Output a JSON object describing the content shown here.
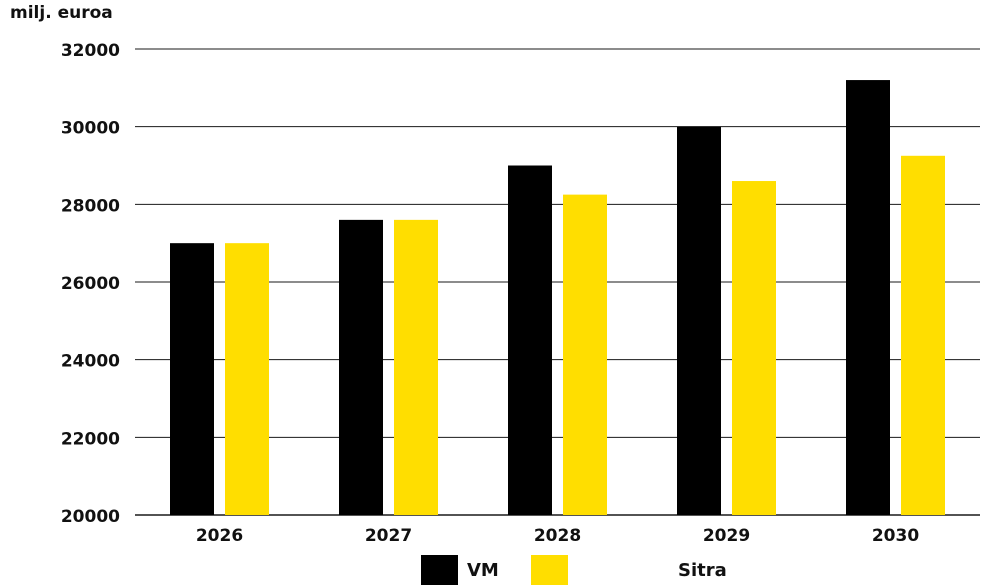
{
  "chart_data": {
    "type": "bar",
    "ylabel": "milj. euroa",
    "categories": [
      "2026",
      "2027",
      "2028",
      "2029",
      "2030"
    ],
    "ylim": [
      20000,
      32000
    ],
    "yticks": [
      "32000",
      "30000",
      "28000",
      "26000",
      "24000",
      "22000",
      "20000"
    ],
    "series": [
      {
        "name": "VM",
        "color": "#000000",
        "values": [
          27000,
          27600,
          29000,
          30000,
          31200
        ]
      },
      {
        "name": "Sitra",
        "color": "#FFDE00",
        "values": [
          27000,
          27600,
          28250,
          28600,
          29250
        ]
      }
    ],
    "grid": true,
    "legend": "bottom-center"
  }
}
